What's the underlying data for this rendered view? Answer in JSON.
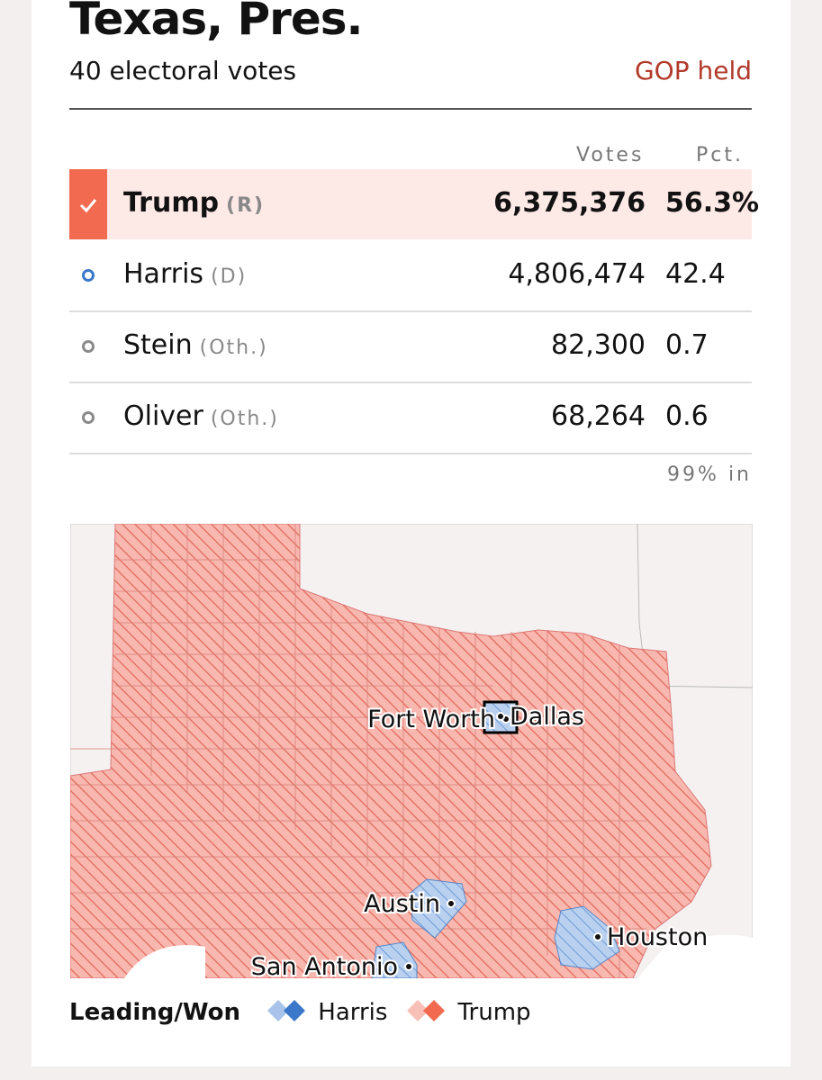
{
  "header": {
    "title": "Texas, Pres.",
    "subtitle": "40 electoral votes",
    "status": "GOP held"
  },
  "table": {
    "columns": [
      "Votes",
      "Pct."
    ],
    "rows": [
      {
        "name": "Trump",
        "party": "(R)",
        "votes": "6,375,376",
        "pct": "56.3%",
        "winner": true,
        "color": "#f26a4f"
      },
      {
        "name": "Harris",
        "party": "(D)",
        "votes": "4,806,474",
        "pct": "42.4",
        "winner": false,
        "color": "#3b78c9"
      },
      {
        "name": "Stein",
        "party": "(Oth.)",
        "votes": "82,300",
        "pct": "0.7",
        "winner": false,
        "color": "#8a8a8a"
      },
      {
        "name": "Oliver",
        "party": "(Oth.)",
        "votes": "68,264",
        "pct": "0.6",
        "winner": false,
        "color": "#8a8a8a"
      }
    ]
  },
  "reporting": "99% in",
  "map": {
    "cities": [
      "Fort Worth",
      "Dallas",
      "Austin",
      "Houston",
      "San Antonio"
    ]
  },
  "legend": {
    "title": "Leading/Won",
    "items": [
      "Harris",
      "Trump"
    ]
  }
}
